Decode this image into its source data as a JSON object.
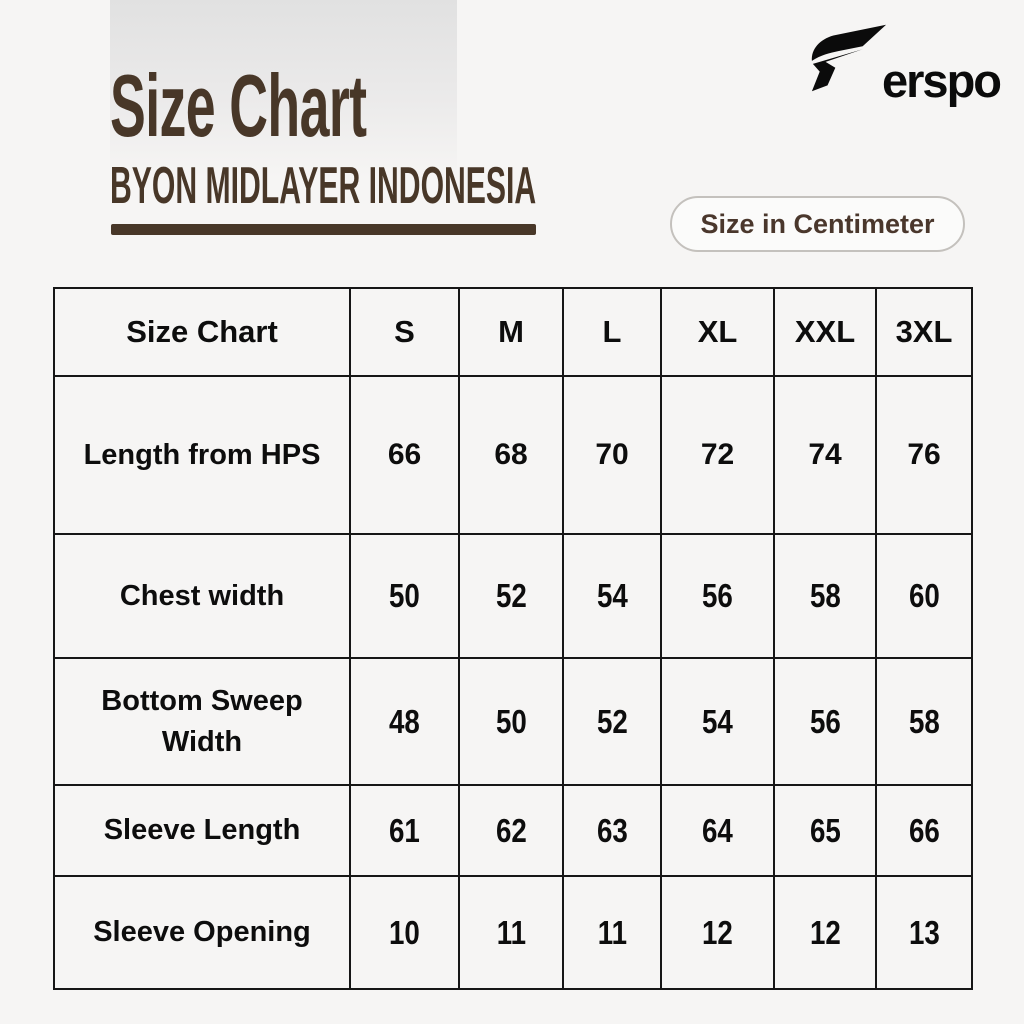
{
  "colors": {
    "accent_brown": "#483728",
    "table_border": "#161616",
    "page_bg": "#f6f5f4"
  },
  "brand": {
    "name": "erspo",
    "icon": "erspo-arrow-icon"
  },
  "header": {
    "title": "Size Chart",
    "subtitle": "BYON MIDLAYER INDONESIA",
    "unit_badge": "Size in Centimeter"
  },
  "chart_data": {
    "type": "table",
    "title": "Size Chart",
    "subtitle": "BYON MIDLAYER INDONESIA",
    "unit": "Centimeter",
    "columns": [
      "Size Chart",
      "S",
      "M",
      "L",
      "XL",
      "XXL",
      "3XL"
    ],
    "rows": [
      {
        "label": "Length from HPS",
        "values": [
          66,
          68,
          70,
          72,
          74,
          76
        ]
      },
      {
        "label": "Chest width",
        "values": [
          50,
          52,
          54,
          56,
          58,
          60
        ]
      },
      {
        "label": "Bottom Sweep Width",
        "values": [
          48,
          50,
          52,
          54,
          56,
          58
        ]
      },
      {
        "label": "Sleeve Length",
        "values": [
          61,
          62,
          63,
          64,
          65,
          66
        ]
      },
      {
        "label": "Sleeve Opening",
        "values": [
          10,
          11,
          11,
          12,
          12,
          13
        ]
      }
    ]
  }
}
